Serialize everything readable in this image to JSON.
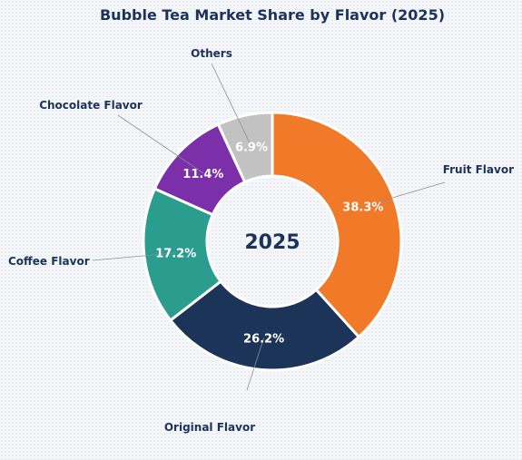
{
  "chart_data": {
    "type": "pie",
    "variant": "donut",
    "title": "Bubble Tea Market Share by Flavor (2025)",
    "center_text": "2025",
    "categories": [
      "Fruit Flavor",
      "Original Flavor",
      "Coffee Flavor",
      "Chocolate Flavor",
      "Others"
    ],
    "values": [
      38.3,
      26.2,
      17.2,
      11.4,
      6.9
    ],
    "value_labels": [
      "38.3%",
      "26.2%",
      "17.2%",
      "11.4%",
      "6.9%"
    ],
    "colors": [
      "#f07a28",
      "#1c3458",
      "#2a9d8f",
      "#7b2fa8",
      "#c2c2c2"
    ],
    "start_angle": "top",
    "direction": "clockwise",
    "legend": "none"
  }
}
